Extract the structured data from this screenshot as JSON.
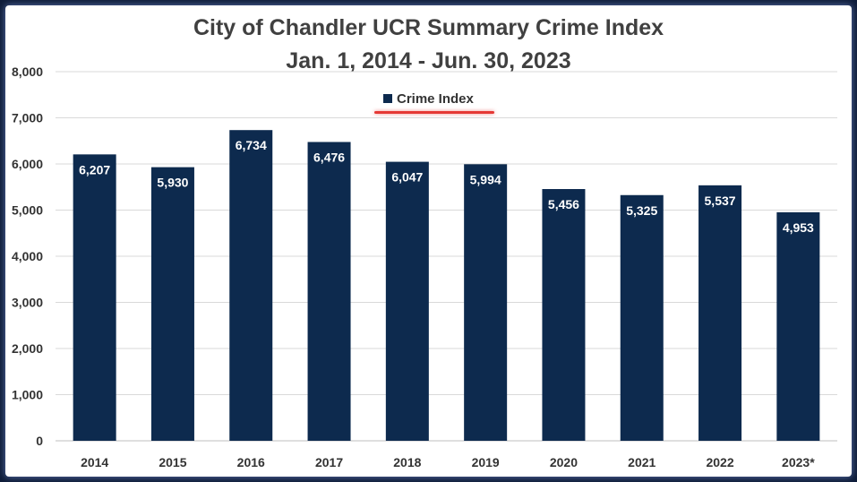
{
  "chart_data": {
    "type": "bar",
    "title": "City of Chandler UCR Summary Crime Index",
    "subtitle": "Jan. 1, 2014 - Jun. 30, 2023",
    "categories": [
      "2014",
      "2015",
      "2016",
      "2017",
      "2018",
      "2019",
      "2020",
      "2021",
      "2022",
      "2023*"
    ],
    "series": [
      {
        "name": "Crime Index",
        "values": [
          6207,
          5930,
          6734,
          6476,
          6047,
          5994,
          5456,
          5325,
          5537,
          4953
        ],
        "labels": [
          "6,207",
          "5,930",
          "6,734",
          "6,476",
          "6,047",
          "5,994",
          "5,456",
          "5,325",
          "5,537",
          "4,953"
        ]
      }
    ],
    "ylim": [
      0,
      8000
    ],
    "yticks": [
      0,
      1000,
      2000,
      3000,
      4000,
      5000,
      6000,
      7000,
      8000
    ],
    "ytick_labels": [
      "0",
      "1,000",
      "2,000",
      "3,000",
      "4,000",
      "5,000",
      "6,000",
      "7,000",
      "8,000"
    ],
    "grid": true,
    "legend_position": "top-center",
    "bar_color": "#0d2a4e",
    "grid_color": "#d9d9d9"
  }
}
